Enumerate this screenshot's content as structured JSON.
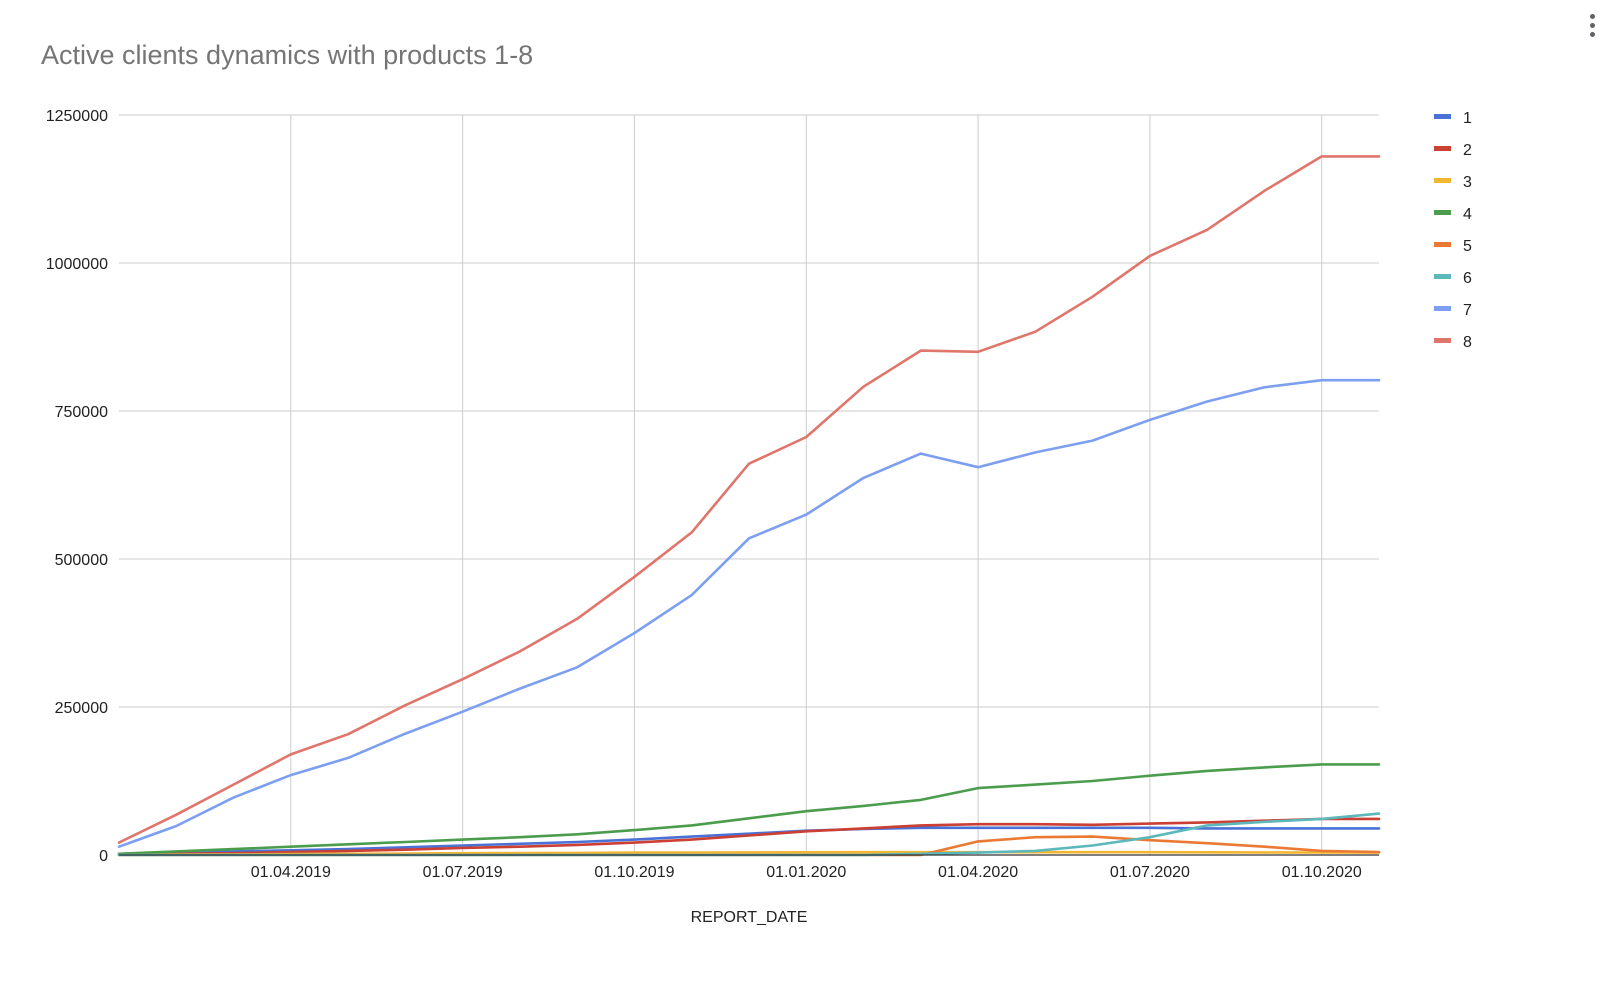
{
  "chart_data": {
    "type": "line",
    "title": "Active clients dynamics with products 1-8",
    "xlabel": "REPORT_DATE",
    "ylabel": "",
    "x": [
      "01.01.2019",
      "01.02.2019",
      "01.03.2019",
      "01.04.2019",
      "01.05.2019",
      "01.06.2019",
      "01.07.2019",
      "01.08.2019",
      "01.09.2019",
      "01.10.2019",
      "01.11.2019",
      "01.12.2019",
      "01.01.2020",
      "01.02.2020",
      "01.03.2020",
      "01.04.2020",
      "01.05.2020",
      "01.06.2020",
      "01.07.2020",
      "01.08.2020",
      "01.09.2020",
      "01.10.2020",
      "01.11.2020"
    ],
    "x_ticks": [
      "01.04.2019",
      "01.07.2019",
      "01.10.2019",
      "01.01.2020",
      "01.04.2020",
      "01.07.2020",
      "01.10.2020"
    ],
    "y_ticks": [
      "0",
      "250000",
      "500000",
      "750000",
      "1000000",
      "1250000"
    ],
    "ylim": [
      0,
      1250000
    ],
    "grid": true,
    "legend_position": "right",
    "series": [
      {
        "name": "1",
        "color": "#4a72d6",
        "values": [
          2000,
          4000,
          6000,
          8000,
          10000,
          13000,
          16000,
          19000,
          22000,
          26000,
          31000,
          36000,
          41000,
          44000,
          46000,
          46000,
          46000,
          46000,
          46000,
          45000,
          45000,
          45000,
          45000
        ]
      },
      {
        "name": "2",
        "color": "#cc3f33",
        "values": [
          1000,
          2000,
          3000,
          5000,
          7000,
          9000,
          12000,
          14000,
          17000,
          21000,
          26000,
          33000,
          40000,
          45000,
          50000,
          52000,
          52000,
          51000,
          53000,
          55000,
          58000,
          61000,
          61000
        ]
      },
      {
        "name": "3",
        "color": "#f2b632",
        "values": [
          300,
          600,
          1000,
          1500,
          2000,
          2500,
          3000,
          3300,
          3600,
          4000,
          4200,
          4400,
          4600,
          4700,
          4800,
          4800,
          4800,
          4800,
          4800,
          4600,
          4400,
          4200,
          4000
        ]
      },
      {
        "name": "4",
        "color": "#4b9d4d",
        "values": [
          2000,
          6000,
          10000,
          14000,
          18000,
          22000,
          26000,
          30000,
          35000,
          42000,
          50000,
          62000,
          74000,
          83000,
          93000,
          113000,
          119000,
          125000,
          134000,
          142000,
          148000,
          153000,
          153000
        ]
      },
      {
        "name": "5",
        "color": "#ea7a33",
        "values": [
          0,
          0,
          0,
          0,
          0,
          0,
          0,
          0,
          0,
          0,
          0,
          0,
          0,
          0,
          0,
          23000,
          30000,
          31000,
          25000,
          20000,
          14000,
          7000,
          5000
        ]
      },
      {
        "name": "6",
        "color": "#5cb8ba",
        "values": [
          0,
          0,
          0,
          0,
          0,
          0,
          0,
          0,
          0,
          0,
          0,
          0,
          0,
          0,
          2000,
          4000,
          7000,
          16000,
          30000,
          50000,
          56000,
          61000,
          70000
        ]
      },
      {
        "name": "7",
        "color": "#7d9ff0",
        "values": [
          14000,
          49000,
          97000,
          135000,
          164000,
          205000,
          242000,
          281000,
          317000,
          375000,
          439000,
          535000,
          575000,
          637000,
          678000,
          655000,
          680000,
          700000,
          735000,
          766000,
          790000,
          802000,
          802000
        ]
      },
      {
        "name": "8",
        "color": "#e0756b",
        "values": [
          21000,
          68000,
          119000,
          170000,
          204000,
          253000,
          297000,
          344000,
          399000,
          470000,
          545000,
          661000,
          706000,
          791000,
          852000,
          850000,
          884000,
          943000,
          1012000,
          1056000,
          1122000,
          1180000,
          1180000
        ]
      }
    ]
  },
  "menu": {
    "icon": "more-vert-icon"
  }
}
